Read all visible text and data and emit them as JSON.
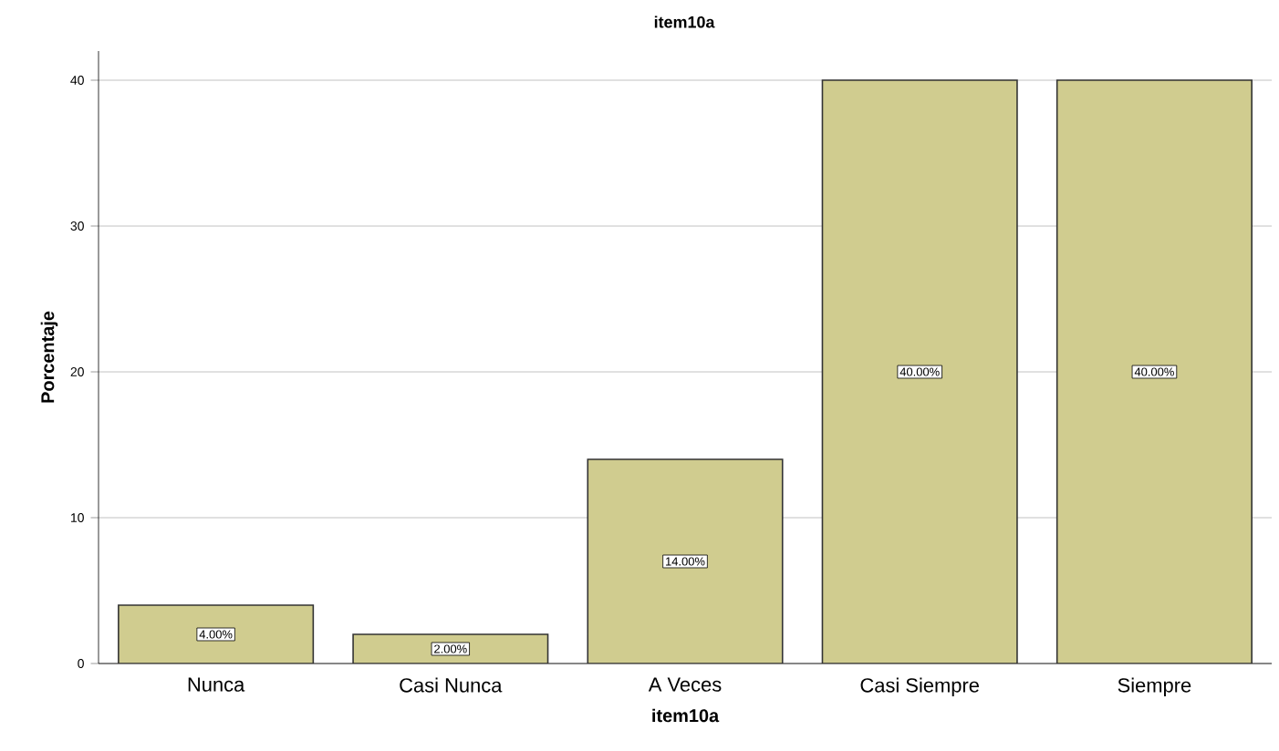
{
  "chart_data": {
    "type": "bar",
    "title": "item10a",
    "xlabel": "item10a",
    "ylabel": "Porcentaje",
    "categories": [
      "Nunca",
      "Casi Nunca",
      "A Veces",
      "Casi Siempre",
      "Siempre"
    ],
    "values": [
      4,
      2,
      14,
      40,
      40
    ],
    "value_labels": [
      "4.00%",
      "2.00%",
      "14.00%",
      "40.00%",
      "40.00%"
    ],
    "color": "#d0cc8f",
    "ylim": [
      0,
      42
    ],
    "yticks": [
      0,
      10,
      20,
      30,
      40
    ],
    "grid": "y"
  }
}
